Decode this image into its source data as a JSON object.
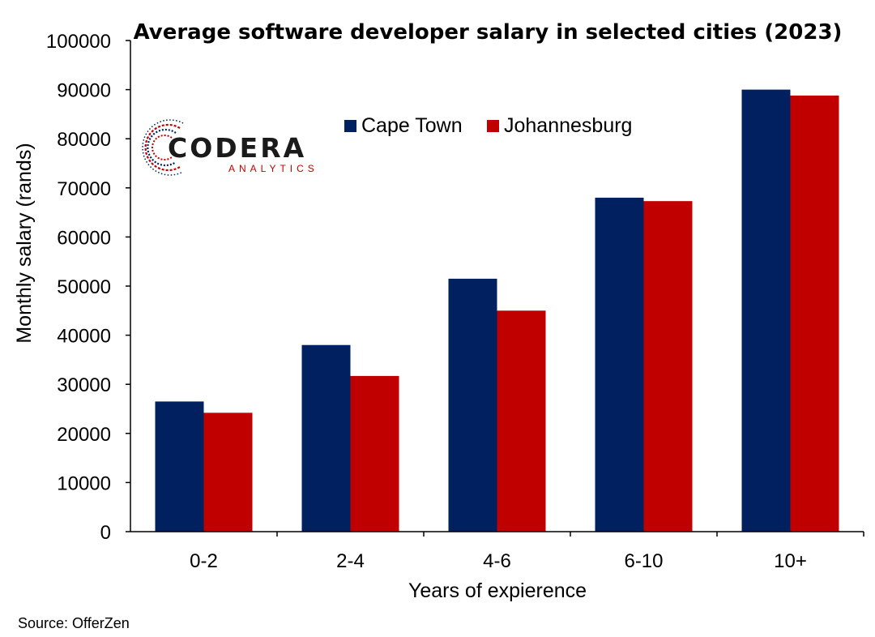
{
  "chart_data": {
    "type": "bar",
    "title": "Average software developer salary in selected cities (2023)",
    "xlabel": "Years of expierence",
    "ylabel": "Monthly salary (rands)",
    "categories": [
      "0-2",
      "2-4",
      "4-6",
      "6-10",
      "10+"
    ],
    "series": [
      {
        "name": "Cape Town",
        "values": [
          26500,
          38000,
          51500,
          68000,
          90000
        ],
        "color": "#002060"
      },
      {
        "name": "Johannesburg",
        "values": [
          24200,
          31700,
          45000,
          67300,
          88800
        ],
        "color": "#C00000"
      }
    ],
    "ylim": [
      0,
      100000
    ],
    "yticks": [
      "0",
      "10000",
      "20000",
      "30000",
      "40000",
      "50000",
      "60000",
      "70000",
      "80000",
      "90000",
      "100000"
    ],
    "grid": false,
    "legend_position": "top-center"
  },
  "logo": {
    "name": "CODERA",
    "tagline": "ANALYTICS",
    "colors": {
      "dark": "#1a1a1a",
      "accent": "#C00000",
      "blue": "#002060"
    }
  },
  "source": "Source: OfferZen"
}
